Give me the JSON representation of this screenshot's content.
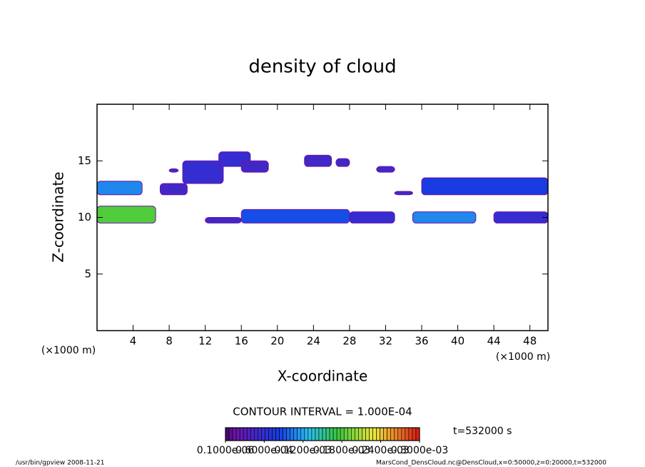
{
  "chart_data": {
    "type": "contour",
    "title": "density of cloud",
    "xlabel": "X-coordinate",
    "ylabel": "Z-coordinate",
    "x_unit": "(×1000 m)",
    "y_unit": "(×1000 m)",
    "xlim": [
      0,
      50
    ],
    "ylim": [
      0,
      20
    ],
    "xticks": [
      4,
      8,
      12,
      16,
      20,
      24,
      28,
      32,
      36,
      40,
      44,
      48
    ],
    "yticks": [
      5,
      10,
      15
    ],
    "contour_interval": "CONTOUR INTERVAL = 1.000E-04",
    "time_label": "t=532000 s",
    "clim": [
      1e-07,
      0.0003
    ],
    "cticks": [
      {
        "value": 1e-07,
        "label": "0.1000e-06"
      },
      {
        "value": 6e-05,
        "label": "0.6000e-04"
      },
      {
        "value": 0.00012,
        "label": "0.1200e-03"
      },
      {
        "value": 0.00018,
        "label": "0.1800e-03"
      },
      {
        "value": 0.00024,
        "label": "0.2400e-03"
      },
      {
        "value": 0.0003,
        "label": "0.3000e-03"
      }
    ],
    "footer_left": "/usr/bin/gpview  2008-11-21",
    "footer_right": "MarsCond_DensCloud.nc@DensCloud,x=0:50000,z=0:20000,t=532000",
    "patches": [
      {
        "x": [
          0,
          6.5
        ],
        "z": [
          9.5,
          11
        ],
        "value": 0.00015
      },
      {
        "x": [
          0,
          5
        ],
        "z": [
          12,
          13.2
        ],
        "value": 8e-05
      },
      {
        "x": [
          7,
          10
        ],
        "z": [
          12,
          13
        ],
        "value": 2e-05
      },
      {
        "x": [
          8,
          9
        ],
        "z": [
          14,
          14.3
        ],
        "value": 2e-05
      },
      {
        "x": [
          9.5,
          14
        ],
        "z": [
          13,
          15
        ],
        "value": 3e-05
      },
      {
        "x": [
          13.5,
          17
        ],
        "z": [
          14.5,
          15.8
        ],
        "value": 3e-05
      },
      {
        "x": [
          16,
          19
        ],
        "z": [
          14,
          15
        ],
        "value": 2e-05
      },
      {
        "x": [
          12,
          16
        ],
        "z": [
          9.5,
          10
        ],
        "value": 2e-05
      },
      {
        "x": [
          16,
          28
        ],
        "z": [
          9.5,
          10.7
        ],
        "value": 6e-05
      },
      {
        "x": [
          23,
          26
        ],
        "z": [
          14.5,
          15.5
        ],
        "value": 2e-05
      },
      {
        "x": [
          26.5,
          28
        ],
        "z": [
          14.5,
          15.2
        ],
        "value": 2e-05
      },
      {
        "x": [
          28,
          33
        ],
        "z": [
          9.5,
          10.5
        ],
        "value": 3e-05
      },
      {
        "x": [
          31,
          33
        ],
        "z": [
          14,
          14.5
        ],
        "value": 2e-05
      },
      {
        "x": [
          33,
          35
        ],
        "z": [
          12,
          12.3
        ],
        "value": 2e-05
      },
      {
        "x": [
          35,
          42
        ],
        "z": [
          9.5,
          10.5
        ],
        "value": 8e-05
      },
      {
        "x": [
          36,
          50
        ],
        "z": [
          12,
          13.5
        ],
        "value": 5e-05
      },
      {
        "x": [
          44,
          50
        ],
        "z": [
          9.5,
          10.5
        ],
        "value": 3e-05
      }
    ]
  }
}
